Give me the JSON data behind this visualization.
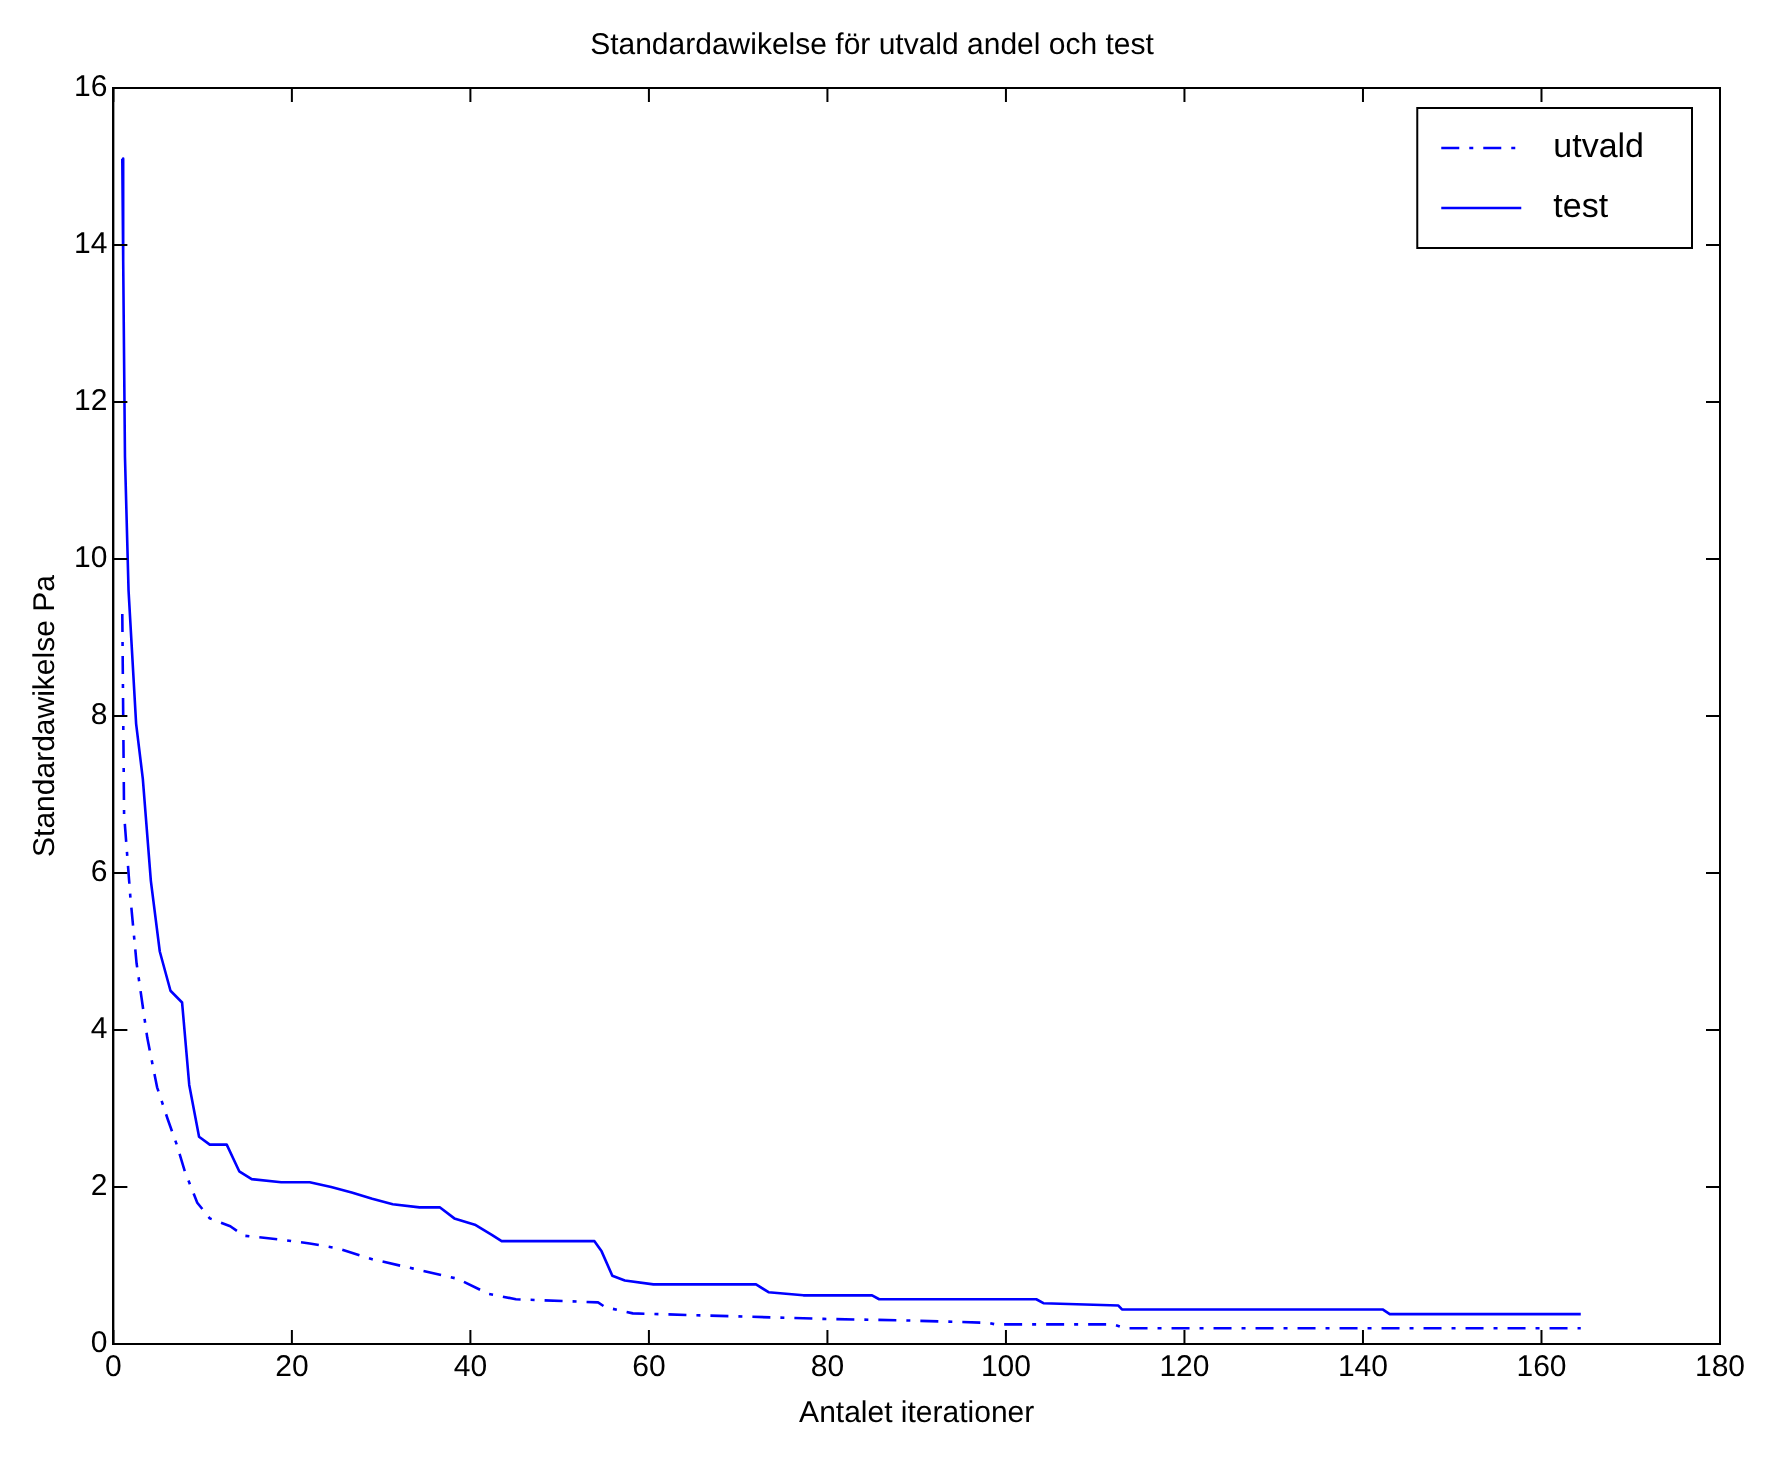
{
  "chart_data": {
    "type": "line",
    "title": "Standardawikelse för utvald andel och test",
    "xlabel": "Antalet iterationer",
    "ylabel": "Standardawikelse Pa",
    "xlim": [
      0,
      180
    ],
    "xticks": [
      0,
      20,
      40,
      60,
      80,
      100,
      120,
      140,
      160,
      180
    ],
    "ylim": [
      0,
      16
    ],
    "yticks": [
      0,
      2,
      4,
      6,
      8,
      10,
      12,
      14,
      16
    ],
    "grid": false,
    "legend": "top right",
    "marker": "none",
    "series": [
      {
        "name": "utvald",
        "color": "#0000ff",
        "line_style": "dashed",
        "x": [
          1,
          1.2,
          1.9,
          2.6,
          3.8,
          4.9,
          6.1,
          7.1,
          8,
          9.4,
          10.8,
          13.1,
          14.6,
          18.8,
          22,
          25.1,
          29,
          33.6,
          38.6,
          42,
          45.1,
          54.3,
          55.1,
          58.2,
          79.6,
          88.8,
          98,
          98.8,
          112,
          113.4,
          164.4
        ],
        "values": [
          9.3,
          6.75,
          5.7,
          4.85,
          3.9,
          3.27,
          2.86,
          2.54,
          2.2,
          1.8,
          1.6,
          1.5,
          1.38,
          1.33,
          1.28,
          1.22,
          1.08,
          0.96,
          0.83,
          0.64,
          0.57,
          0.53,
          0.47,
          0.39,
          0.32,
          0.3,
          0.27,
          0.25,
          0.25,
          0.2,
          0.2
        ]
      },
      {
        "name": "test",
        "color": "#0000ff",
        "line_style": "solid",
        "x": [
          1,
          1.1,
          1.3,
          1.7,
          2.55,
          3.3,
          4.2,
          5.2,
          6.4,
          7.7,
          8.5,
          9.6,
          10.8,
          12.7,
          14.1,
          15.5,
          18.8,
          22,
          24.4,
          26.7,
          29,
          31.3,
          34.3,
          36.6,
          38.2,
          40.5,
          42.4,
          43.5,
          53.9,
          54.7,
          55.9,
          57.3,
          60.5,
          72,
          73.4,
          77.3,
          85,
          85.8,
          91.2,
          103.4,
          104.2,
          112.6,
          113,
          142.2,
          143,
          164.4
        ],
        "values": [
          15.1,
          13.8,
          11.3,
          9.6,
          7.9,
          7.2,
          5.9,
          5.0,
          4.5,
          4.35,
          3.3,
          2.64,
          2.54,
          2.54,
          2.2,
          2.1,
          2.06,
          2.06,
          2.0,
          1.93,
          1.85,
          1.78,
          1.74,
          1.74,
          1.6,
          1.52,
          1.39,
          1.31,
          1.31,
          1.18,
          0.87,
          0.81,
          0.76,
          0.76,
          0.66,
          0.62,
          0.62,
          0.57,
          0.57,
          0.57,
          0.52,
          0.49,
          0.44,
          0.44,
          0.38,
          0.38
        ]
      }
    ]
  }
}
